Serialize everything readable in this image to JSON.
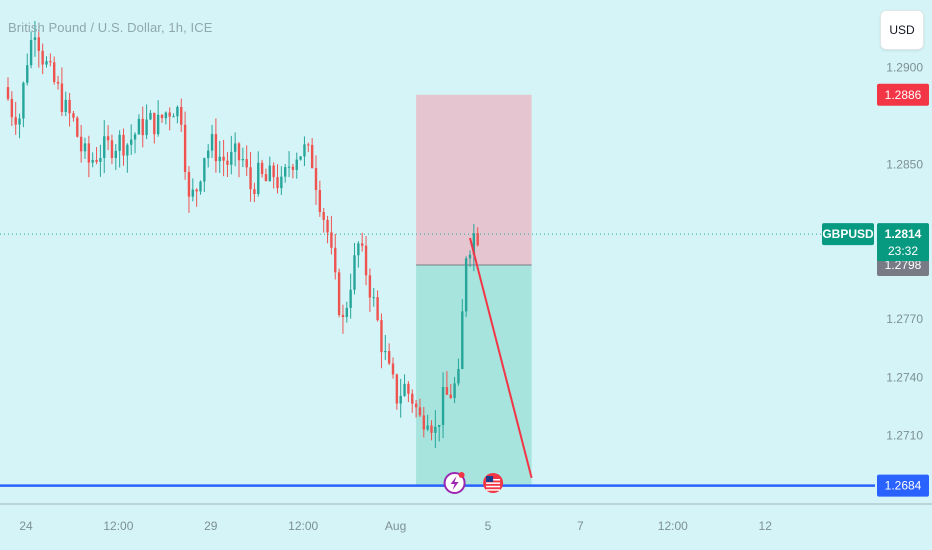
{
  "header": {
    "title": "British Pound / U.S. Dollar, 1h, ICE",
    "currency_button": "USD"
  },
  "colors": {
    "background": "#d5f4f7",
    "up": "#26a69a",
    "down": "#ef5350",
    "stop_zone": "#e9b6c1",
    "target_zone": "#9ee0d8",
    "horizontal_line": "#2962ff",
    "trend_line": "#f23645",
    "tag_red": "#f23645",
    "tag_green": "#089981",
    "tag_grey": "#787b86",
    "tag_blue": "#2962ff"
  },
  "chart_data": {
    "type": "candlestick",
    "symbol": "GBPUSD",
    "interval": "1h",
    "ylim": [
      1.2675,
      1.2935
    ],
    "y_ticks": [
      "1.2900",
      "1.2850",
      "1.2770",
      "1.2740",
      "1.2710"
    ],
    "x_ticks": [
      {
        "label": "24",
        "x": 0
      },
      {
        "label": "12:00",
        "x": 12
      },
      {
        "label": "29",
        "x": 24
      },
      {
        "label": "12:00",
        "x": 36
      },
      {
        "label": "Aug",
        "x": 48
      },
      {
        "label": "5",
        "x": 60
      },
      {
        "label": "7",
        "x": 72
      },
      {
        "label": "12:00",
        "x": 84
      },
      {
        "label": "12",
        "x": 96
      }
    ],
    "price_path": [
      [
        0,
        1.289
      ],
      [
        1,
        1.2878
      ],
      [
        2,
        1.2875
      ],
      [
        3,
        1.2905
      ],
      [
        4,
        1.2922
      ],
      [
        5,
        1.2906
      ],
      [
        6,
        1.2896
      ],
      [
        7,
        1.2888
      ],
      [
        8,
        1.2878
      ],
      [
        9,
        1.2872
      ],
      [
        10,
        1.2858
      ],
      [
        11,
        1.2851
      ],
      [
        12,
        1.2855
      ],
      [
        13,
        1.2858
      ],
      [
        14,
        1.286
      ],
      [
        15,
        1.2862
      ],
      [
        16,
        1.2861
      ],
      [
        17,
        1.2866
      ],
      [
        18,
        1.287
      ],
      [
        19,
        1.2872
      ],
      [
        20,
        1.2871
      ],
      [
        21,
        1.2877
      ],
      [
        22,
        1.288
      ],
      [
        23,
        1.2876
      ],
      [
        24,
        1.283
      ],
      [
        25,
        1.2838
      ],
      [
        26,
        1.2856
      ],
      [
        27,
        1.286
      ],
      [
        28,
        1.2854
      ],
      [
        29,
        1.2851
      ],
      [
        30,
        1.2854
      ],
      [
        31,
        1.2852
      ],
      [
        32,
        1.2838
      ],
      [
        33,
        1.2844
      ],
      [
        34,
        1.2841
      ],
      [
        35,
        1.2845
      ],
      [
        36,
        1.2838
      ],
      [
        37,
        1.285
      ],
      [
        38,
        1.2856
      ],
      [
        39,
        1.2857
      ],
      [
        40,
        1.2852
      ],
      [
        41,
        1.2832
      ],
      [
        42,
        1.2815
      ],
      [
        43,
        1.2788
      ],
      [
        44,
        1.2768
      ],
      [
        45,
        1.279
      ],
      [
        46,
        1.2808
      ],
      [
        47,
        1.2795
      ],
      [
        48,
        1.2778
      ],
      [
        49,
        1.2758
      ],
      [
        50,
        1.2742
      ],
      [
        51,
        1.273
      ],
      [
        52,
        1.2735
      ],
      [
        53,
        1.2729
      ],
      [
        54,
        1.2718
      ],
      [
        55,
        1.2722
      ],
      [
        56,
        1.2712
      ],
      [
        57,
        1.2728
      ],
      [
        58,
        1.2732
      ],
      [
        59,
        1.2738
      ],
      [
        60,
        1.2805
      ],
      [
        61,
        1.2814
      ]
    ],
    "trade": {
      "direction": "short",
      "stop": 1.2886,
      "entry": 1.2798,
      "target": 1.2684,
      "start_bar": 53,
      "end_bar": 68
    },
    "trend_line": {
      "from": [
        60,
        1.2812
      ],
      "to": [
        68,
        1.2688
      ]
    },
    "horizontal_line": {
      "value": 1.2684
    },
    "current_price": {
      "symbol": "GBPUSD",
      "value": "1.2814",
      "countdown": "23:32"
    },
    "price_tags": [
      {
        "label": "1.2886",
        "value": 1.2886,
        "color": "red"
      },
      {
        "label": "1.2798",
        "value": 1.2798,
        "color": "grey"
      },
      {
        "label": "1.2684",
        "value": 1.2684,
        "color": "blue"
      }
    ],
    "events": [
      {
        "name": "lightning-event-icon",
        "bar": 58
      },
      {
        "name": "us-flag-event-icon",
        "bar": 63
      }
    ]
  }
}
